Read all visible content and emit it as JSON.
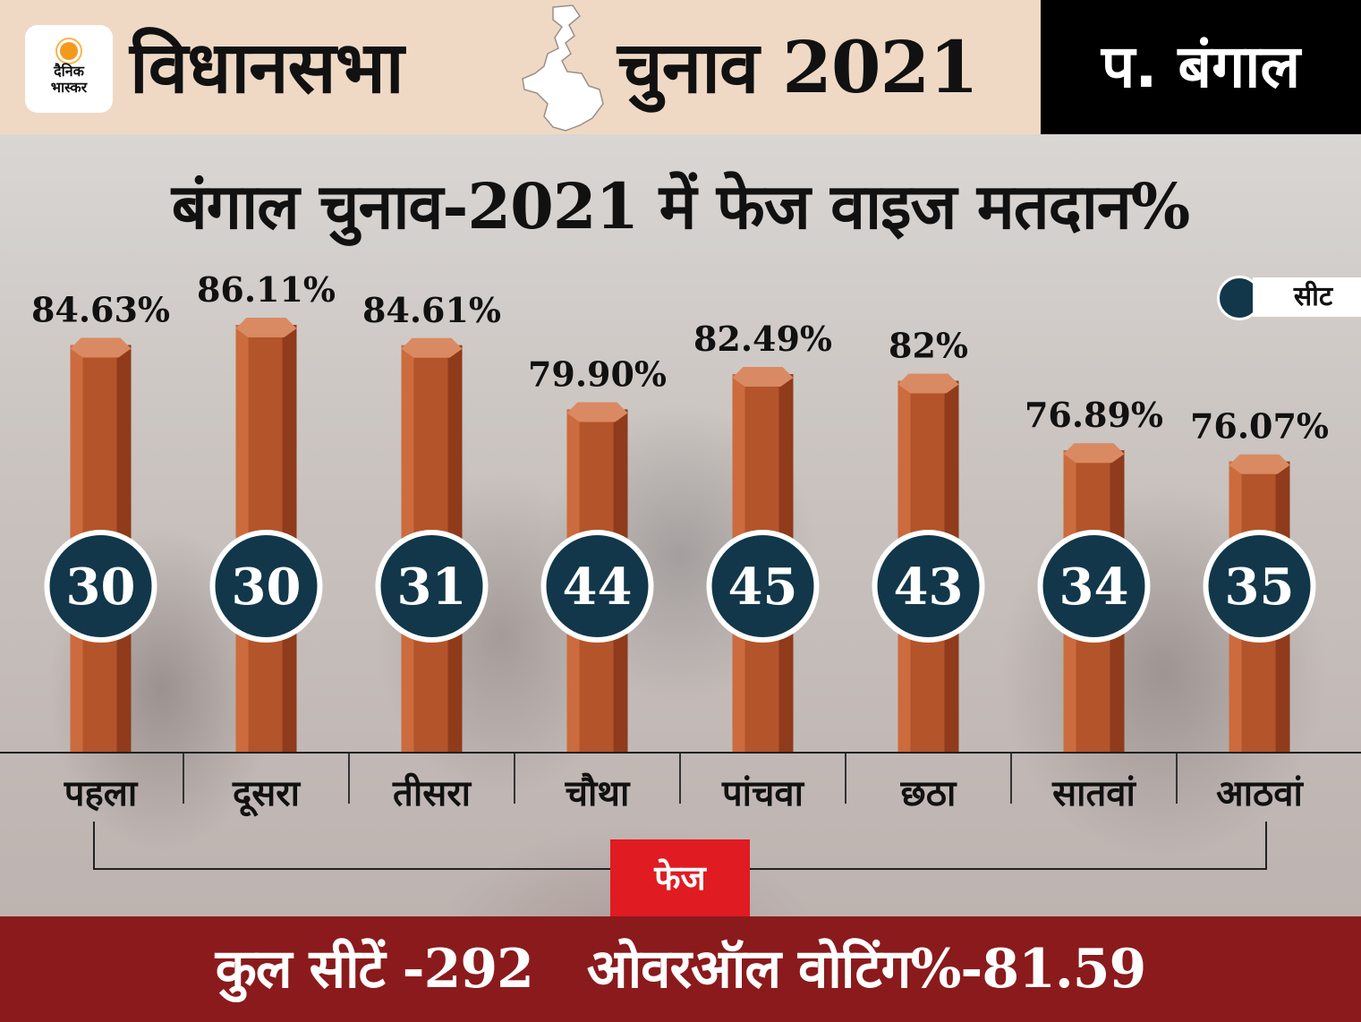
{
  "header": {
    "logo_line1": "दैनिक",
    "logo_line2": "भास्कर",
    "title_left": "विधानसभा",
    "title_right": "चुनाव 2021",
    "state": "प. बंगाल"
  },
  "colors": {
    "bar": "#b4542b",
    "bar_dark": "#8f3b1c",
    "bar_light": "#cc6b3d",
    "bar_top": "#d98a62",
    "seat_circle": "#12374a",
    "header_bg": "#efd9c5",
    "footer_bg": "#8b1a1c",
    "phase_badge": "#e01b22"
  },
  "chart_data": {
    "type": "bar",
    "title": "बंगाल चुनाव-2021 में फेज वाइज मतदान%",
    "categories": [
      "पहला",
      "दूसरा",
      "तीसरा",
      "चौथा",
      "पांचवा",
      "छठा",
      "सातवां",
      "आठवां"
    ],
    "series": [
      {
        "values": [
          84.63,
          86.11,
          84.61,
          79.9,
          82.49,
          82,
          76.89,
          76.07
        ]
      }
    ],
    "value_labels": [
      "84.63%",
      "86.11%",
      "84.61%",
      "79.90%",
      "82.49%",
      "82%",
      "76.89%",
      "76.07%"
    ],
    "seats": [
      30,
      30,
      31,
      44,
      45,
      43,
      34,
      35
    ],
    "legend": {
      "seat_label": "सीट",
      "position": "top-right"
    },
    "xlabel": "फेज",
    "ylabel": "",
    "grid": false
  },
  "footer": {
    "total_seats": "कुल सीटें -292",
    "overall_voting": "ओवरऑल वोटिंग%-81.59"
  }
}
